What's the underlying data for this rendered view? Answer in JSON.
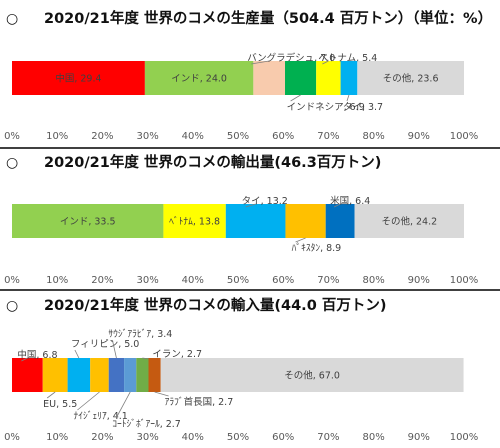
{
  "circle_mark": "○",
  "chart_data": [
    {
      "type": "bar",
      "title": "2020/21年度 世界のコメの生産量（504.4 百万トン）（単位：%）",
      "series": [
        {
          "name": "中国",
          "value": 29.4,
          "label": "中国, 29.4",
          "color": "#ff0000"
        },
        {
          "name": "インド",
          "value": 24.0,
          "label": "インド, 24.0",
          "color": "#92d050"
        },
        {
          "name": "バングラデシュ",
          "value": 7.0,
          "label": "バングラデシュ, 7.0",
          "color": "#f8cbad"
        },
        {
          "name": "インドネシア",
          "value": 6.9,
          "label": "インドネシア, 6.9",
          "color": "#00b050"
        },
        {
          "name": "ベトナム",
          "value": 5.4,
          "label": "ベトナム, 5.4",
          "color": "#ffff00"
        },
        {
          "name": "タイ",
          "value": 3.7,
          "label": "タイ, 3.7",
          "color": "#00b0f0"
        },
        {
          "name": "その他",
          "value": 23.6,
          "label": "その他, 23.6",
          "color": "#d9d9d9"
        }
      ],
      "xlim": [
        0,
        100
      ],
      "ticks": [
        "0%",
        "10%",
        "20%",
        "30%",
        "40%",
        "50%",
        "60%",
        "70%",
        "80%",
        "90%",
        "100%"
      ]
    },
    {
      "type": "bar",
      "title": "2020/21年度 世界のコメの輸出量(46.3百万トン)",
      "series": [
        {
          "name": "インド",
          "value": 33.5,
          "label": "インド, 33.5",
          "color": "#92d050"
        },
        {
          "name": "ベトナム",
          "value": 13.8,
          "label": "ﾍﾞﾄﾅﾑ, 13.8",
          "color": "#ffff00"
        },
        {
          "name": "タイ",
          "value": 13.2,
          "label": "タイ, 13.2",
          "color": "#00b0f0"
        },
        {
          "name": "パキスタン",
          "value": 8.9,
          "label": "ﾊﾟｷｽﾀﾝ, 8.9",
          "color": "#ffc000"
        },
        {
          "name": "米国",
          "value": 6.4,
          "label": "米国, 6.4",
          "color": "#0070c0"
        },
        {
          "name": "その他",
          "value": 24.2,
          "label": "その他, 24.2",
          "color": "#d9d9d9"
        }
      ],
      "xlim": [
        0,
        100
      ],
      "ticks": [
        "0%",
        "10%",
        "20%",
        "30%",
        "40%",
        "50%",
        "60%",
        "70%",
        "80%",
        "90%",
        "100%"
      ]
    },
    {
      "type": "bar",
      "title": "2020/21年度 世界のコメの輸入量(44.0 百万トン)",
      "series": [
        {
          "name": "中国",
          "value": 6.8,
          "label": "中国, 6.8",
          "color": "#ff0000"
        },
        {
          "name": "EU",
          "value": 5.5,
          "label": "EU, 5.5",
          "color": "#ffc000"
        },
        {
          "name": "フィリピン",
          "value": 5.0,
          "label": "フィリピン, 5.0",
          "color": "#00b0f0"
        },
        {
          "name": "ナイジェリア",
          "value": 4.1,
          "label": "ﾅｲｼﾞｪﾘｱ, 4.1",
          "color": "#ffc000"
        },
        {
          "name": "サウジアラビア",
          "value": 3.4,
          "label": "ｻｳｼﾞｱﾗﾋﾞｱ, 3.4",
          "color": "#4472c4"
        },
        {
          "name": "コートジボアール",
          "value": 2.7,
          "label": "ｺｰﾄｼﾞﾎﾞｱｰﾙ, 2.7",
          "color": "#5b9bd5"
        },
        {
          "name": "イラン",
          "value": 2.7,
          "label": "イラン, 2.7",
          "color": "#70ad47"
        },
        {
          "name": "アラブ首長国",
          "value": 2.7,
          "label": "ｱﾗﾌﾞ首長国, 2.7",
          "color": "#c55a11"
        },
        {
          "name": "その他",
          "value": 67.0,
          "label": "その他, 67.0",
          "color": "#d9d9d9"
        }
      ],
      "xlim": [
        0,
        100
      ],
      "ticks": [
        "0%",
        "10%",
        "20%",
        "30%",
        "40%",
        "50%",
        "60%",
        "70%",
        "80%",
        "90%",
        "100%"
      ]
    }
  ]
}
